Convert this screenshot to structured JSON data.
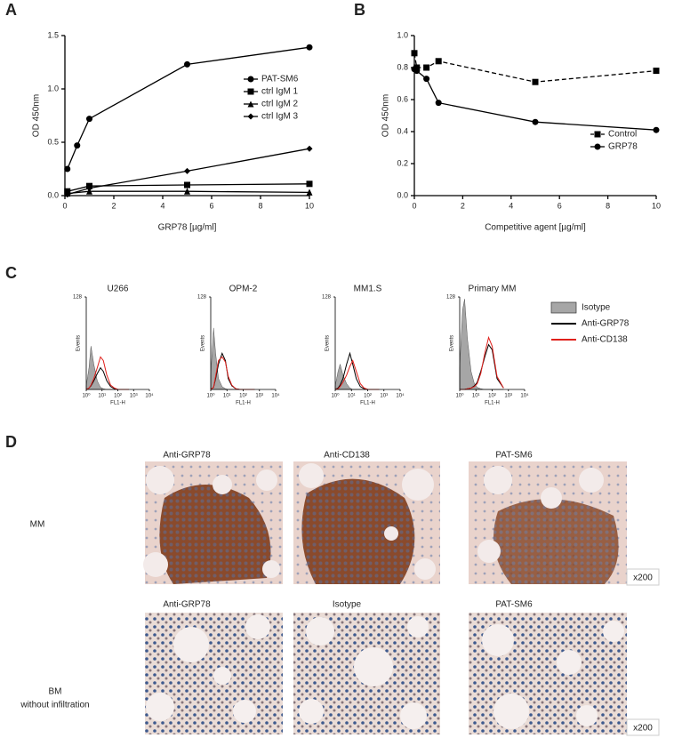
{
  "panel_labels": [
    "A",
    "B",
    "C",
    "D"
  ],
  "chart_data": [
    {
      "type": "line",
      "xlabel": "GRP78 [µg/ml]",
      "ylabel": "OD 450nm",
      "xlim": [
        0,
        10
      ],
      "xticks": [
        0,
        2,
        4,
        6,
        8,
        10
      ],
      "ylim": [
        0,
        1.5
      ],
      "yticks": [
        {
          "value": 0,
          "label": "0.0"
        },
        0.5,
        {
          "value": 1,
          "label": "1.0"
        },
        1.5
      ],
      "legend": "center-right",
      "series": [
        {
          "name": "PAT-SM6",
          "color": "#000000",
          "marker": "circle",
          "x": [
            0.1,
            0.5,
            1,
            5,
            10
          ],
          "values": [
            0.25,
            0.47,
            0.72,
            1.23,
            1.39
          ]
        },
        {
          "name": "ctrl IgM 1",
          "color": "#000000",
          "marker": "square",
          "x": [
            0.1,
            1,
            5,
            10
          ],
          "values": [
            0.04,
            0.09,
            0.1,
            0.11
          ]
        },
        {
          "name": "ctrl IgM 2",
          "color": "#000000",
          "marker": "triangle",
          "x": [
            0.1,
            1,
            5,
            10
          ],
          "values": [
            0.02,
            0.04,
            0.04,
            0.03
          ]
        },
        {
          "name": "ctrl IgM 3",
          "color": "#000000",
          "marker": "diamond",
          "x": [
            0.1,
            1,
            5,
            10
          ],
          "values": [
            0.01,
            0.07,
            0.23,
            0.44
          ]
        }
      ]
    },
    {
      "type": "line",
      "xlabel": "Competitive agent [µg/ml]",
      "ylabel": "OD 450nm",
      "xlim": [
        0,
        10
      ],
      "xticks": [
        0,
        2,
        4,
        6,
        8,
        10
      ],
      "ylim": [
        0,
        1
      ],
      "yticks": [
        {
          "value": 0,
          "label": "0.0"
        },
        0.2,
        0.4,
        0.6,
        0.8,
        {
          "value": 1,
          "label": "1.0"
        }
      ],
      "legend": "center-right",
      "series": [
        {
          "name": "Control",
          "color": "#000000",
          "marker": "square",
          "dashed": true,
          "x": [
            0,
            0.1,
            0.5,
            1,
            5,
            10
          ],
          "values": [
            0.89,
            0.8,
            0.8,
            0.84,
            0.71,
            0.78
          ]
        },
        {
          "name": "GRP78",
          "color": "#000000",
          "marker": "circle",
          "x": [
            0,
            0.1,
            0.5,
            1,
            5,
            10
          ],
          "values": [
            0.79,
            0.78,
            0.73,
            0.58,
            0.46,
            0.41
          ]
        }
      ]
    },
    {
      "type": "histogram-overlay",
      "title": "U266",
      "xlabel": "FL1-H",
      "ylabel": "Events",
      "xlog": true,
      "x": [
        1,
        1.5,
        2,
        3,
        5,
        8,
        12,
        20,
        35,
        60,
        100,
        200,
        500
      ],
      "xlim": [
        1,
        10000
      ],
      "xticks": [
        {
          "value": 1,
          "label": "10⁰"
        },
        {
          "value": 10,
          "label": "10¹"
        },
        {
          "value": 100,
          "label": "10²"
        },
        {
          "value": 1000,
          "label": "10³"
        },
        {
          "value": 10000,
          "label": "10⁴"
        }
      ],
      "ylim": [
        0,
        128
      ],
      "yticks": [
        128
      ],
      "series": [
        {
          "color": "#a6a6a6",
          "fill": true,
          "values": [
            5,
            30,
            60,
            35,
            12,
            3,
            1,
            0,
            0,
            0,
            0,
            0,
            0
          ]
        },
        {
          "color": "#000000",
          "values": [
            0,
            2,
            5,
            12,
            22,
            30,
            25,
            12,
            4,
            1,
            0,
            0,
            0
          ]
        },
        {
          "color": "#e0201b",
          "values": [
            0,
            2,
            6,
            15,
            30,
            45,
            40,
            20,
            6,
            2,
            0,
            0,
            0
          ]
        }
      ]
    },
    {
      "type": "histogram-overlay",
      "title": "OPM-2",
      "xlabel": "FL1-H",
      "ylabel": "Events",
      "xlog": true,
      "x": [
        1,
        1.5,
        2,
        3,
        5,
        8,
        12,
        20,
        35,
        60,
        100,
        200,
        500
      ],
      "xlim": [
        1,
        10000
      ],
      "xticks": [
        {
          "value": 1,
          "label": "10⁰"
        },
        {
          "value": 10,
          "label": "10¹"
        },
        {
          "value": 100,
          "label": "10²"
        },
        {
          "value": 1000,
          "label": "10³"
        },
        {
          "value": 10000,
          "label": "10⁴"
        }
      ],
      "ylim": [
        0,
        128
      ],
      "yticks": [
        128
      ],
      "series": [
        {
          "color": "#a6a6a6",
          "fill": true,
          "values": [
            20,
            85,
            50,
            15,
            4,
            1,
            0,
            0,
            0,
            0,
            0,
            0,
            0
          ]
        },
        {
          "color": "#000000",
          "values": [
            0,
            3,
            15,
            35,
            50,
            40,
            15,
            5,
            1,
            0,
            0,
            0,
            0
          ]
        },
        {
          "color": "#e0201b",
          "values": [
            0,
            3,
            18,
            40,
            45,
            38,
            18,
            6,
            1,
            0,
            0,
            0,
            0
          ]
        }
      ]
    },
    {
      "type": "histogram-overlay",
      "title": "MM1.S",
      "xlabel": "FL1-H",
      "ylabel": "Events",
      "xlog": true,
      "x": [
        1,
        1.5,
        2,
        3,
        5,
        8,
        12,
        20,
        35,
        60,
        100,
        200,
        500
      ],
      "xlim": [
        1,
        10000
      ],
      "xticks": [
        {
          "value": 1,
          "label": "10⁰"
        },
        {
          "value": 10,
          "label": "10¹"
        },
        {
          "value": 100,
          "label": "10²"
        },
        {
          "value": 1000,
          "label": "10³"
        },
        {
          "value": 10000,
          "label": "10⁴"
        }
      ],
      "ylim": [
        0,
        128
      ],
      "yticks": [
        128
      ],
      "series": [
        {
          "color": "#a6a6a6",
          "fill": true,
          "values": [
            5,
            25,
            35,
            20,
            8,
            2,
            0,
            0,
            0,
            0,
            0,
            0,
            0
          ]
        },
        {
          "color": "#000000",
          "values": [
            0,
            2,
            6,
            15,
            35,
            50,
            35,
            15,
            4,
            1,
            0,
            0,
            0
          ]
        },
        {
          "color": "#e0201b",
          "values": [
            0,
            1,
            4,
            10,
            20,
            32,
            40,
            25,
            8,
            2,
            0,
            0,
            0
          ]
        }
      ]
    },
    {
      "type": "histogram-overlay",
      "title": "Primary MM",
      "xlabel": "FL1-H",
      "ylabel": "Events",
      "xlog": true,
      "x": [
        1,
        1.5,
        2,
        3,
        5,
        8,
        12,
        20,
        35,
        60,
        100,
        200,
        500
      ],
      "xlim": [
        1,
        10000
      ],
      "xticks": [
        {
          "value": 1,
          "label": "10⁰"
        },
        {
          "value": 10,
          "label": "10¹"
        },
        {
          "value": 100,
          "label": "10²"
        },
        {
          "value": 1000,
          "label": "10³"
        },
        {
          "value": 10000,
          "label": "10⁴"
        }
      ],
      "ylim": [
        0,
        128
      ],
      "yticks": [
        128
      ],
      "legend": "outside-right",
      "series": [
        {
          "name": "Isotype",
          "color": "#a6a6a6",
          "fill": true,
          "values": [
            30,
            110,
            125,
            70,
            25,
            8,
            3,
            1,
            0,
            0,
            0,
            0,
            0
          ]
        },
        {
          "name": "Anti-GRP78",
          "color": "#000000",
          "values": [
            0,
            0,
            0,
            1,
            2,
            5,
            10,
            25,
            45,
            62,
            55,
            15,
            2
          ]
        },
        {
          "name": "Anti-CD138",
          "color": "#e0201b",
          "values": [
            0,
            0,
            0,
            1,
            2,
            4,
            8,
            22,
            50,
            72,
            60,
            18,
            2
          ]
        }
      ]
    }
  ],
  "panel_d": {
    "rows": [
      {
        "label": [
          "MM"
        ],
        "columns": [
          "Anti-GRP78",
          "Anti-CD138",
          "PAT-SM6"
        ],
        "magnification": "x200"
      },
      {
        "label": [
          "BM",
          "without infiltration"
        ],
        "columns": [
          "Anti-GRP78",
          "Isotype",
          "PAT-SM6"
        ],
        "magnification": "x200"
      }
    ]
  }
}
